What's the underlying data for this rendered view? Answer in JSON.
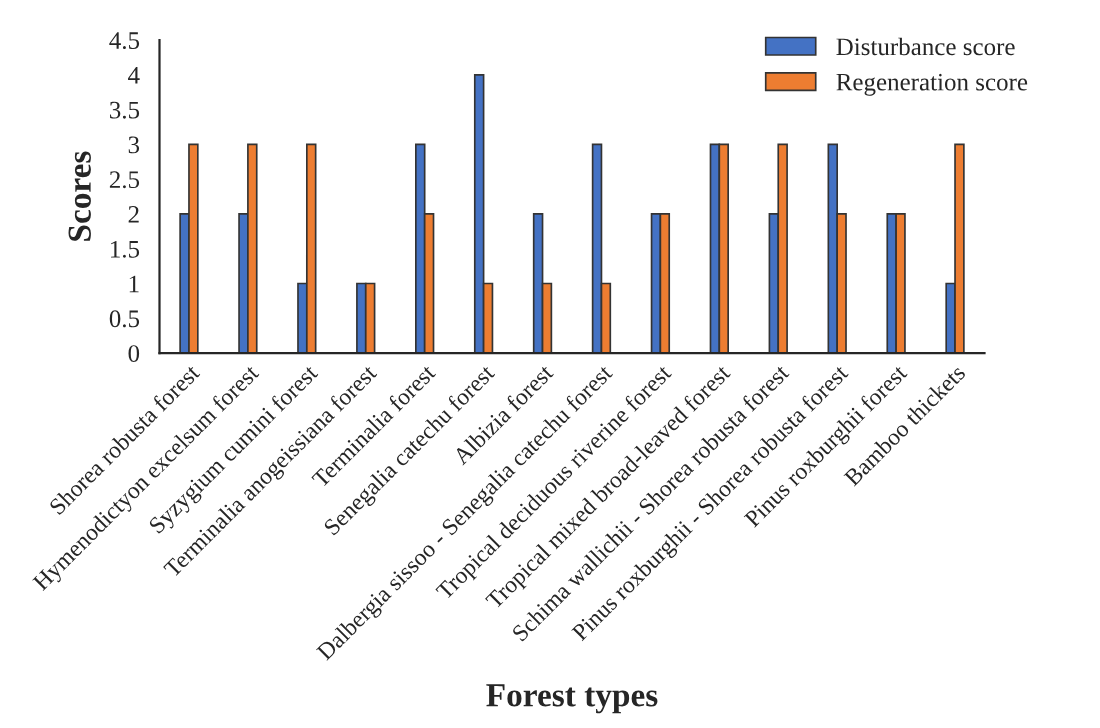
{
  "chart_data": {
    "type": "bar",
    "xlabel": "Forest types",
    "ylabel": "Scores",
    "categories": [
      "Shorea robusta forest",
      "Hymenodictyon excelsum forest",
      "Syzygium cumini forest",
      "Terminalia anogeissiana forest",
      "Terminalia forest",
      "Senegalia catechu forest",
      "Albizia forest",
      "Dalbergia sissoo - Senegalia catechu forest",
      "Tropical deciduous riverine forest",
      "Tropical mixed broad-leaved forest",
      "Schima wallichii - Shorea robusta forest",
      "Pinus roxburghii - Shorea robusta forest",
      "Pinus roxburghii forest",
      "Bamboo thickets"
    ],
    "series": [
      {
        "name": "Disturbance score",
        "color": "#4472c4",
        "values": [
          2,
          2,
          1,
          1,
          3,
          4,
          2,
          3,
          2,
          3,
          2,
          3,
          2,
          1
        ]
      },
      {
        "name": "Regeneration score",
        "color": "#ed7d31",
        "values": [
          3,
          3,
          3,
          1,
          2,
          1,
          1,
          1,
          2,
          3,
          3,
          2,
          2,
          3
        ]
      }
    ],
    "ylim": [
      0,
      4.5
    ],
    "yticks": [
      0,
      0.5,
      1,
      1.5,
      2,
      2.5,
      3,
      3.5,
      4,
      4.5
    ],
    "grid": false,
    "legend": "top right"
  }
}
